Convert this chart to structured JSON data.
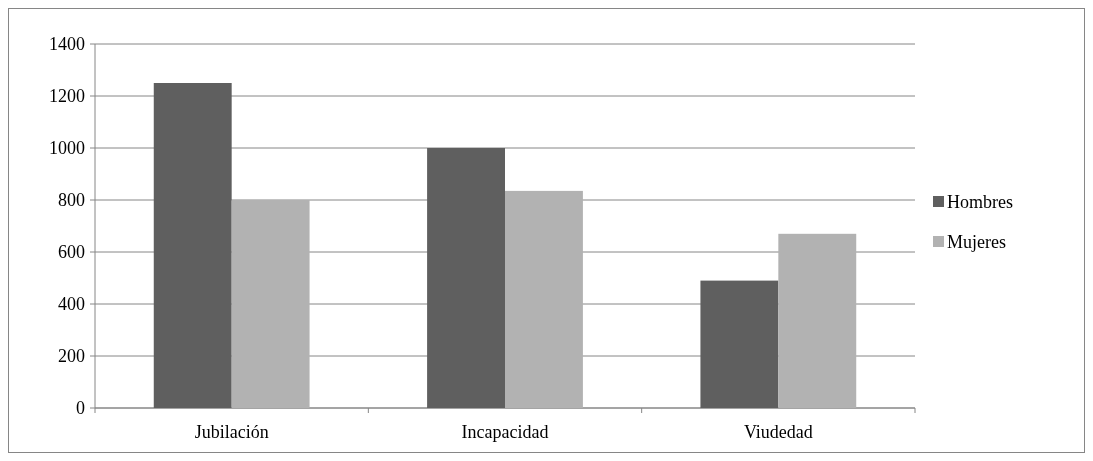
{
  "chart_data": {
    "type": "bar",
    "categories": [
      "Jubilación",
      "Incapacidad",
      "Viudedad"
    ],
    "series": [
      {
        "name": "Hombres",
        "color": "#5f5f5f",
        "values": [
          1250,
          1000,
          490
        ]
      },
      {
        "name": "Mujeres",
        "color": "#b2b2b2",
        "values": [
          800,
          835,
          670
        ]
      }
    ],
    "ylim": [
      0,
      1400
    ],
    "yticks": [
      0,
      200,
      400,
      600,
      800,
      1000,
      1200,
      1400
    ],
    "grid": "y",
    "legend": "right"
  }
}
